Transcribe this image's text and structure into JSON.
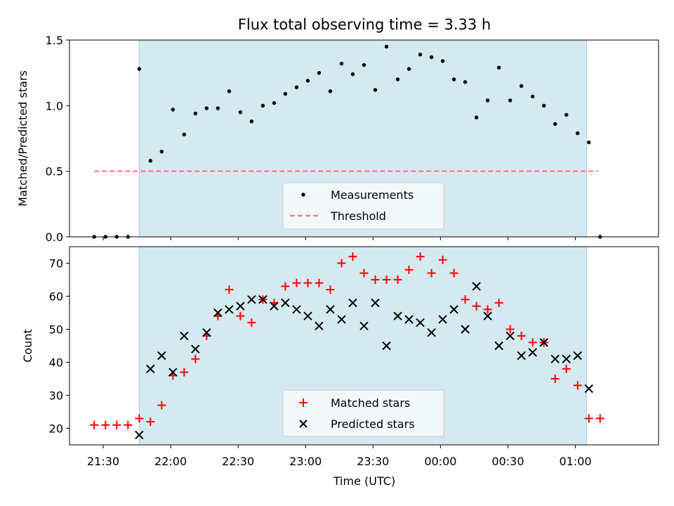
{
  "chart_data": [
    {
      "type": "scatter",
      "title": "Flux total observing time = 3.33 h",
      "xlabel": "",
      "ylabel": "Matched/Predicted stars",
      "ylim": [
        0,
        1.5
      ],
      "yticks": [
        "0.0",
        "0.5",
        "1.0",
        "1.5"
      ],
      "xticks": [
        "21:30",
        "22:00",
        "22:30",
        "23:00",
        "23:30",
        "00:00",
        "00:30",
        "01:00"
      ],
      "tick_times": [
        "21:30",
        "22:00",
        "22:30",
        "23:00",
        "23:30",
        "00:00",
        "00:30",
        "01:00"
      ],
      "xlim": [
        "21:15",
        "01:37"
      ],
      "shaded_span": [
        "21:46",
        "01:05"
      ],
      "threshold": {
        "name": "Threshold",
        "y": 0.5,
        "x": [
          "21:26",
          "01:10"
        ],
        "color": "#ff6060",
        "style": "dashed"
      },
      "series": [
        {
          "name": "Measurements",
          "color": "#000000",
          "marker": "dot",
          "points": [
            [
              "21:26",
              0.0
            ],
            [
              "21:31",
              0.0
            ],
            [
              "21:36",
              0.0
            ],
            [
              "21:41",
              0.0
            ],
            [
              "21:46",
              1.28
            ],
            [
              "21:51",
              0.58
            ],
            [
              "21:56",
              0.65
            ],
            [
              "22:01",
              0.97
            ],
            [
              "22:06",
              0.78
            ],
            [
              "22:11",
              0.94
            ],
            [
              "22:16",
              0.98
            ],
            [
              "22:21",
              0.98
            ],
            [
              "22:26",
              1.11
            ],
            [
              "22:31",
              0.95
            ],
            [
              "22:36",
              0.88
            ],
            [
              "22:41",
              1.0
            ],
            [
              "22:46",
              1.02
            ],
            [
              "22:51",
              1.09
            ],
            [
              "22:56",
              1.14
            ],
            [
              "23:01",
              1.19
            ],
            [
              "23:06",
              1.25
            ],
            [
              "23:11",
              1.11
            ],
            [
              "23:16",
              1.32
            ],
            [
              "23:21",
              1.24
            ],
            [
              "23:26",
              1.31
            ],
            [
              "23:31",
              1.12
            ],
            [
              "23:36",
              1.45
            ],
            [
              "23:41",
              1.2
            ],
            [
              "23:46",
              1.28
            ],
            [
              "23:51",
              1.39
            ],
            [
              "23:56",
              1.37
            ],
            [
              "00:01",
              1.34
            ],
            [
              "00:06",
              1.2
            ],
            [
              "00:11",
              1.18
            ],
            [
              "00:16",
              0.91
            ],
            [
              "00:21",
              1.04
            ],
            [
              "00:26",
              1.29
            ],
            [
              "00:31",
              1.04
            ],
            [
              "00:36",
              1.15
            ],
            [
              "00:41",
              1.07
            ],
            [
              "00:46",
              1.0
            ],
            [
              "00:51",
              0.86
            ],
            [
              "00:56",
              0.93
            ],
            [
              "01:01",
              0.79
            ],
            [
              "01:06",
              0.72
            ],
            [
              "01:11",
              0.0
            ]
          ]
        }
      ],
      "legend": [
        "Measurements",
        "Threshold"
      ],
      "legend_position": "bottom-center",
      "shade_color": "#d4eaf0"
    },
    {
      "type": "scatter",
      "title": "",
      "xlabel": "Time (UTC)",
      "ylabel": "Count",
      "ylim": [
        15,
        75
      ],
      "yticks": [
        "20",
        "30",
        "40",
        "50",
        "60",
        "70"
      ],
      "xticks": [
        "21:30",
        "22:00",
        "22:30",
        "23:00",
        "23:30",
        "00:00",
        "00:30",
        "01:00"
      ],
      "tick_times": [
        "21:30",
        "22:00",
        "22:30",
        "23:00",
        "23:30",
        "00:00",
        "00:30",
        "01:00"
      ],
      "xlim": [
        "21:15",
        "01:37"
      ],
      "shaded_span": [
        "21:46",
        "01:05"
      ],
      "series": [
        {
          "name": "Matched stars",
          "color": "#ff0000",
          "marker": "plus",
          "points": [
            [
              "21:26",
              21
            ],
            [
              "21:31",
              21
            ],
            [
              "21:36",
              21
            ],
            [
              "21:41",
              21
            ],
            [
              "21:46",
              23
            ],
            [
              "21:51",
              22
            ],
            [
              "21:56",
              27
            ],
            [
              "22:01",
              36
            ],
            [
              "22:06",
              37
            ],
            [
              "22:11",
              41
            ],
            [
              "22:16",
              48
            ],
            [
              "22:21",
              54
            ],
            [
              "22:26",
              62
            ],
            [
              "22:31",
              54
            ],
            [
              "22:36",
              52
            ],
            [
              "22:41",
              59
            ],
            [
              "22:46",
              58
            ],
            [
              "22:51",
              63
            ],
            [
              "22:56",
              64
            ],
            [
              "23:01",
              64
            ],
            [
              "23:06",
              64
            ],
            [
              "23:11",
              62
            ],
            [
              "23:16",
              70
            ],
            [
              "23:21",
              72
            ],
            [
              "23:26",
              67
            ],
            [
              "23:31",
              65
            ],
            [
              "23:36",
              65
            ],
            [
              "23:41",
              65
            ],
            [
              "23:46",
              68
            ],
            [
              "23:51",
              72
            ],
            [
              "23:56",
              67
            ],
            [
              "00:01",
              71
            ],
            [
              "00:06",
              67
            ],
            [
              "00:11",
              59
            ],
            [
              "00:16",
              57
            ],
            [
              "00:21",
              56
            ],
            [
              "00:26",
              58
            ],
            [
              "00:31",
              50
            ],
            [
              "00:36",
              48
            ],
            [
              "00:41",
              46
            ],
            [
              "00:46",
              46
            ],
            [
              "00:51",
              35
            ],
            [
              "00:56",
              38
            ],
            [
              "01:01",
              33
            ],
            [
              "01:06",
              23
            ],
            [
              "01:11",
              23
            ]
          ]
        },
        {
          "name": "Predicted stars",
          "color": "#000000",
          "marker": "x",
          "points": [
            [
              "21:46",
              18
            ],
            [
              "21:51",
              38
            ],
            [
              "21:56",
              42
            ],
            [
              "22:01",
              37
            ],
            [
              "22:06",
              48
            ],
            [
              "22:11",
              44
            ],
            [
              "22:16",
              49
            ],
            [
              "22:21",
              55
            ],
            [
              "22:26",
              56
            ],
            [
              "22:31",
              57
            ],
            [
              "22:36",
              59
            ],
            [
              "22:41",
              59
            ],
            [
              "22:46",
              57
            ],
            [
              "22:51",
              58
            ],
            [
              "22:56",
              56
            ],
            [
              "23:01",
              54
            ],
            [
              "23:06",
              51
            ],
            [
              "23:11",
              56
            ],
            [
              "23:16",
              53
            ],
            [
              "23:21",
              58
            ],
            [
              "23:26",
              51
            ],
            [
              "23:31",
              58
            ],
            [
              "23:36",
              45
            ],
            [
              "23:41",
              54
            ],
            [
              "23:46",
              53
            ],
            [
              "23:51",
              52
            ],
            [
              "23:56",
              49
            ],
            [
              "00:01",
              53
            ],
            [
              "00:06",
              56
            ],
            [
              "00:11",
              50
            ],
            [
              "00:16",
              63
            ],
            [
              "00:21",
              54
            ],
            [
              "00:26",
              45
            ],
            [
              "00:31",
              48
            ],
            [
              "00:36",
              42
            ],
            [
              "00:41",
              43
            ],
            [
              "00:46",
              46
            ],
            [
              "00:51",
              41
            ],
            [
              "00:56",
              41
            ],
            [
              "01:01",
              42
            ],
            [
              "01:06",
              32
            ]
          ]
        }
      ],
      "legend": [
        "Matched stars",
        "Predicted stars"
      ],
      "legend_position": "bottom-center",
      "shade_color": "#d4eaf0"
    }
  ]
}
